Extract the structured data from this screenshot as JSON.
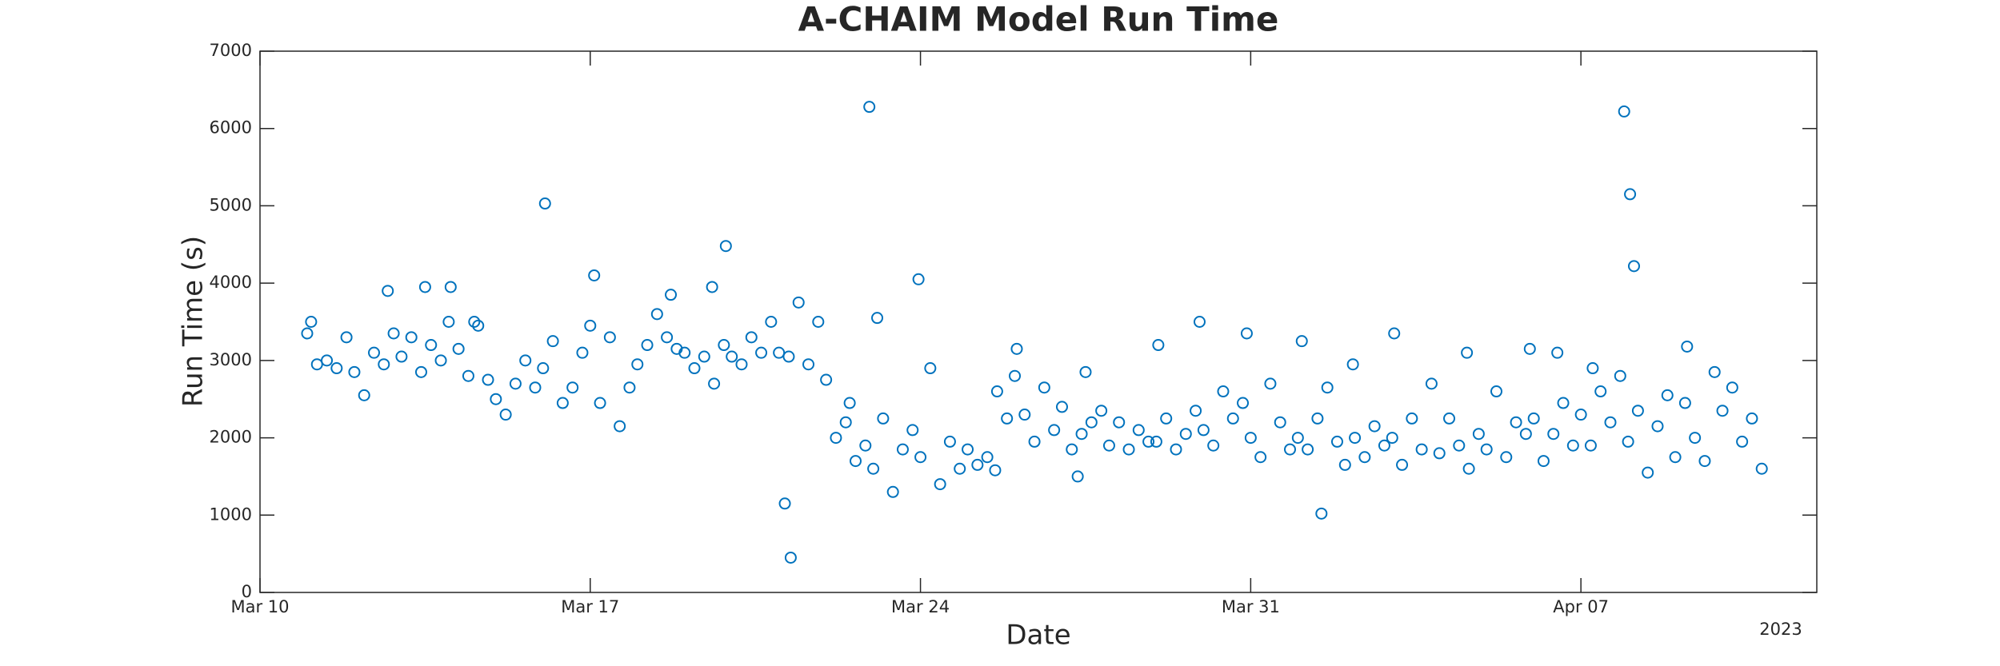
{
  "chart_data": {
    "type": "scatter",
    "title": "A-CHAIM Model Run Time",
    "x_label": "Date",
    "y_label": "Run Time (s)",
    "x_year_label": "2023",
    "color": "#0072bd",
    "xlim": [
      "2023-03-10T00:00",
      "2023-04-12T00:00"
    ],
    "xticks": [
      {
        "value": "2023-03-10T00:00",
        "label": "Mar 10"
      },
      {
        "value": "2023-03-17T00:00",
        "label": "Mar 17"
      },
      {
        "value": "2023-03-24T00:00",
        "label": "Mar 24"
      },
      {
        "value": "2023-03-31T00:00",
        "label": "Mar 31"
      },
      {
        "value": "2023-04-07T00:00",
        "label": "Apr 07"
      }
    ],
    "ylim": [
      0,
      7000
    ],
    "yticks": [
      0,
      1000,
      2000,
      3000,
      4000,
      5000,
      6000,
      7000
    ],
    "x": [
      "2023-03-11T00:00",
      "2023-03-11T02:00",
      "2023-03-11T05:00",
      "2023-03-11T10:00",
      "2023-03-11T15:00",
      "2023-03-11T20:00",
      "2023-03-12T00:00",
      "2023-03-12T05:00",
      "2023-03-12T10:00",
      "2023-03-12T15:00",
      "2023-03-12T17:00",
      "2023-03-12T20:00",
      "2023-03-13T00:00",
      "2023-03-13T05:00",
      "2023-03-13T10:00",
      "2023-03-13T12:00",
      "2023-03-13T15:00",
      "2023-03-13T20:00",
      "2023-03-14T00:00",
      "2023-03-14T01:00",
      "2023-03-14T05:00",
      "2023-03-14T10:00",
      "2023-03-14T13:00",
      "2023-03-14T15:00",
      "2023-03-14T20:00",
      "2023-03-15T00:00",
      "2023-03-15T05:00",
      "2023-03-15T10:00",
      "2023-03-15T15:00",
      "2023-03-15T20:00",
      "2023-03-16T00:00",
      "2023-03-16T01:00",
      "2023-03-16T05:00",
      "2023-03-16T10:00",
      "2023-03-16T15:00",
      "2023-03-16T20:00",
      "2023-03-17T00:00",
      "2023-03-17T02:00",
      "2023-03-17T05:00",
      "2023-03-17T10:00",
      "2023-03-17T15:00",
      "2023-03-17T20:00",
      "2023-03-18T00:00",
      "2023-03-18T05:00",
      "2023-03-18T10:00",
      "2023-03-18T15:00",
      "2023-03-18T17:00",
      "2023-03-18T20:00",
      "2023-03-19T00:00",
      "2023-03-19T05:00",
      "2023-03-19T10:00",
      "2023-03-19T14:00",
      "2023-03-19T15:00",
      "2023-03-19T20:00",
      "2023-03-19T21:00",
      "2023-03-20T00:00",
      "2023-03-20T05:00",
      "2023-03-20T10:00",
      "2023-03-20T15:00",
      "2023-03-20T20:00",
      "2023-03-21T00:00",
      "2023-03-21T03:00",
      "2023-03-21T05:00",
      "2023-03-21T06:00",
      "2023-03-21T10:00",
      "2023-03-21T15:00",
      "2023-03-21T20:00",
      "2023-03-22T00:00",
      "2023-03-22T05:00",
      "2023-03-22T10:00",
      "2023-03-22T12:00",
      "2023-03-22T15:00",
      "2023-03-22T20:00",
      "2023-03-22T22:00",
      "2023-03-23T00:00",
      "2023-03-23T02:00",
      "2023-03-23T05:00",
      "2023-03-23T10:00",
      "2023-03-23T15:00",
      "2023-03-23T20:00",
      "2023-03-23T23:00",
      "2023-03-24T00:00",
      "2023-03-24T05:00",
      "2023-03-24T10:00",
      "2023-03-24T15:00",
      "2023-03-24T20:00",
      "2023-03-25T00:00",
      "2023-03-25T05:00",
      "2023-03-25T10:00",
      "2023-03-25T14:00",
      "2023-03-25T15:00",
      "2023-03-25T20:00",
      "2023-03-26T00:00",
      "2023-03-26T01:00",
      "2023-03-26T05:00",
      "2023-03-26T10:00",
      "2023-03-26T15:00",
      "2023-03-26T20:00",
      "2023-03-27T00:00",
      "2023-03-27T05:00",
      "2023-03-27T08:00",
      "2023-03-27T10:00",
      "2023-03-27T12:00",
      "2023-03-27T15:00",
      "2023-03-27T20:00",
      "2023-03-28T00:00",
      "2023-03-28T05:00",
      "2023-03-28T10:00",
      "2023-03-28T15:00",
      "2023-03-28T20:00",
      "2023-03-29T00:00",
      "2023-03-29T01:00",
      "2023-03-29T05:00",
      "2023-03-29T10:00",
      "2023-03-29T15:00",
      "2023-03-29T20:00",
      "2023-03-29T22:00",
      "2023-03-30T00:00",
      "2023-03-30T05:00",
      "2023-03-30T10:00",
      "2023-03-30T15:00",
      "2023-03-30T20:00",
      "2023-03-30T22:00",
      "2023-03-31T00:00",
      "2023-03-31T05:00",
      "2023-03-31T10:00",
      "2023-03-31T15:00",
      "2023-03-31T20:00",
      "2023-04-01T00:00",
      "2023-04-01T02:00",
      "2023-04-01T05:00",
      "2023-04-01T10:00",
      "2023-04-01T12:00",
      "2023-04-01T15:00",
      "2023-04-01T20:00",
      "2023-04-02T00:00",
      "2023-04-02T04:00",
      "2023-04-02T05:00",
      "2023-04-02T10:00",
      "2023-04-02T15:00",
      "2023-04-02T20:00",
      "2023-04-03T00:00",
      "2023-04-03T01:00",
      "2023-04-03T05:00",
      "2023-04-03T10:00",
      "2023-04-03T15:00",
      "2023-04-03T20:00",
      "2023-04-04T00:00",
      "2023-04-04T05:00",
      "2023-04-04T10:00",
      "2023-04-04T14:00",
      "2023-04-04T15:00",
      "2023-04-04T20:00",
      "2023-04-05T00:00",
      "2023-04-05T05:00",
      "2023-04-05T10:00",
      "2023-04-05T15:00",
      "2023-04-05T20:00",
      "2023-04-05T22:00",
      "2023-04-06T00:00",
      "2023-04-06T05:00",
      "2023-04-06T10:00",
      "2023-04-06T12:00",
      "2023-04-06T15:00",
      "2023-04-06T20:00",
      "2023-04-07T00:00",
      "2023-04-07T05:00",
      "2023-04-07T06:00",
      "2023-04-07T10:00",
      "2023-04-07T15:00",
      "2023-04-07T20:00",
      "2023-04-07T22:00",
      "2023-04-08T00:00",
      "2023-04-08T01:00",
      "2023-04-08T03:00",
      "2023-04-08T05:00",
      "2023-04-08T10:00",
      "2023-04-08T15:00",
      "2023-04-08T20:00",
      "2023-04-09T00:00",
      "2023-04-09T05:00",
      "2023-04-09T06:00",
      "2023-04-09T10:00",
      "2023-04-09T15:00",
      "2023-04-09T20:00",
      "2023-04-10T00:00",
      "2023-04-10T05:00",
      "2023-04-10T10:00",
      "2023-04-10T15:00",
      "2023-04-10T20:00"
    ],
    "values": [
      3350,
      3500,
      2950,
      3000,
      2900,
      3300,
      2850,
      2550,
      3100,
      2950,
      3900,
      3350,
      3050,
      3300,
      2850,
      3950,
      3200,
      3000,
      3500,
      3950,
      3150,
      2800,
      3500,
      3450,
      2750,
      2500,
      2300,
      2700,
      3000,
      2650,
      2900,
      5030,
      3250,
      2450,
      2650,
      3100,
      3450,
      4100,
      2450,
      3300,
      2150,
      2650,
      2950,
      3200,
      3600,
      3300,
      3850,
      3150,
      3100,
      2900,
      3050,
      3950,
      2700,
      3200,
      4480,
      3050,
      2950,
      3300,
      3100,
      3500,
      3100,
      1150,
      3050,
      450,
      3750,
      2950,
      3500,
      2750,
      2000,
      2200,
      2450,
      1700,
      1900,
      6280,
      1600,
      3550,
      2250,
      1300,
      1850,
      2100,
      4050,
      1750,
      2900,
      1400,
      1950,
      1600,
      1850,
      1650,
      1750,
      1580,
      2600,
      2250,
      2800,
      3150,
      2300,
      1950,
      2650,
      2100,
      2400,
      1850,
      1500,
      2050,
      2850,
      2200,
      2350,
      1900,
      2200,
      1850,
      2100,
      1950,
      1950,
      3200,
      2250,
      1850,
      2050,
      2350,
      3500,
      2100,
      1900,
      2600,
      2250,
      2450,
      3350,
      2000,
      1750,
      2700,
      2200,
      1850,
      2000,
      3250,
      1850,
      2250,
      1020,
      2650,
      1950,
      1650,
      2950,
      2000,
      1750,
      2150,
      1900,
      2000,
      3350,
      1650,
      2250,
      1850,
      2700,
      1800,
      2250,
      1900,
      3100,
      1600,
      2050,
      1850,
      2600,
      1750,
      2200,
      2050,
      3150,
      2250,
      1700,
      2050,
      3100,
      2450,
      1900,
      2300,
      1900,
      2900,
      2600,
      2200,
      2800,
      6220,
      1950,
      5150,
      4220,
      2350,
      1550,
      2150,
      2550,
      1750,
      2450,
      3180,
      2000,
      1700,
      2850,
      2350,
      2650,
      1950,
      2250,
      1600
    ]
  }
}
